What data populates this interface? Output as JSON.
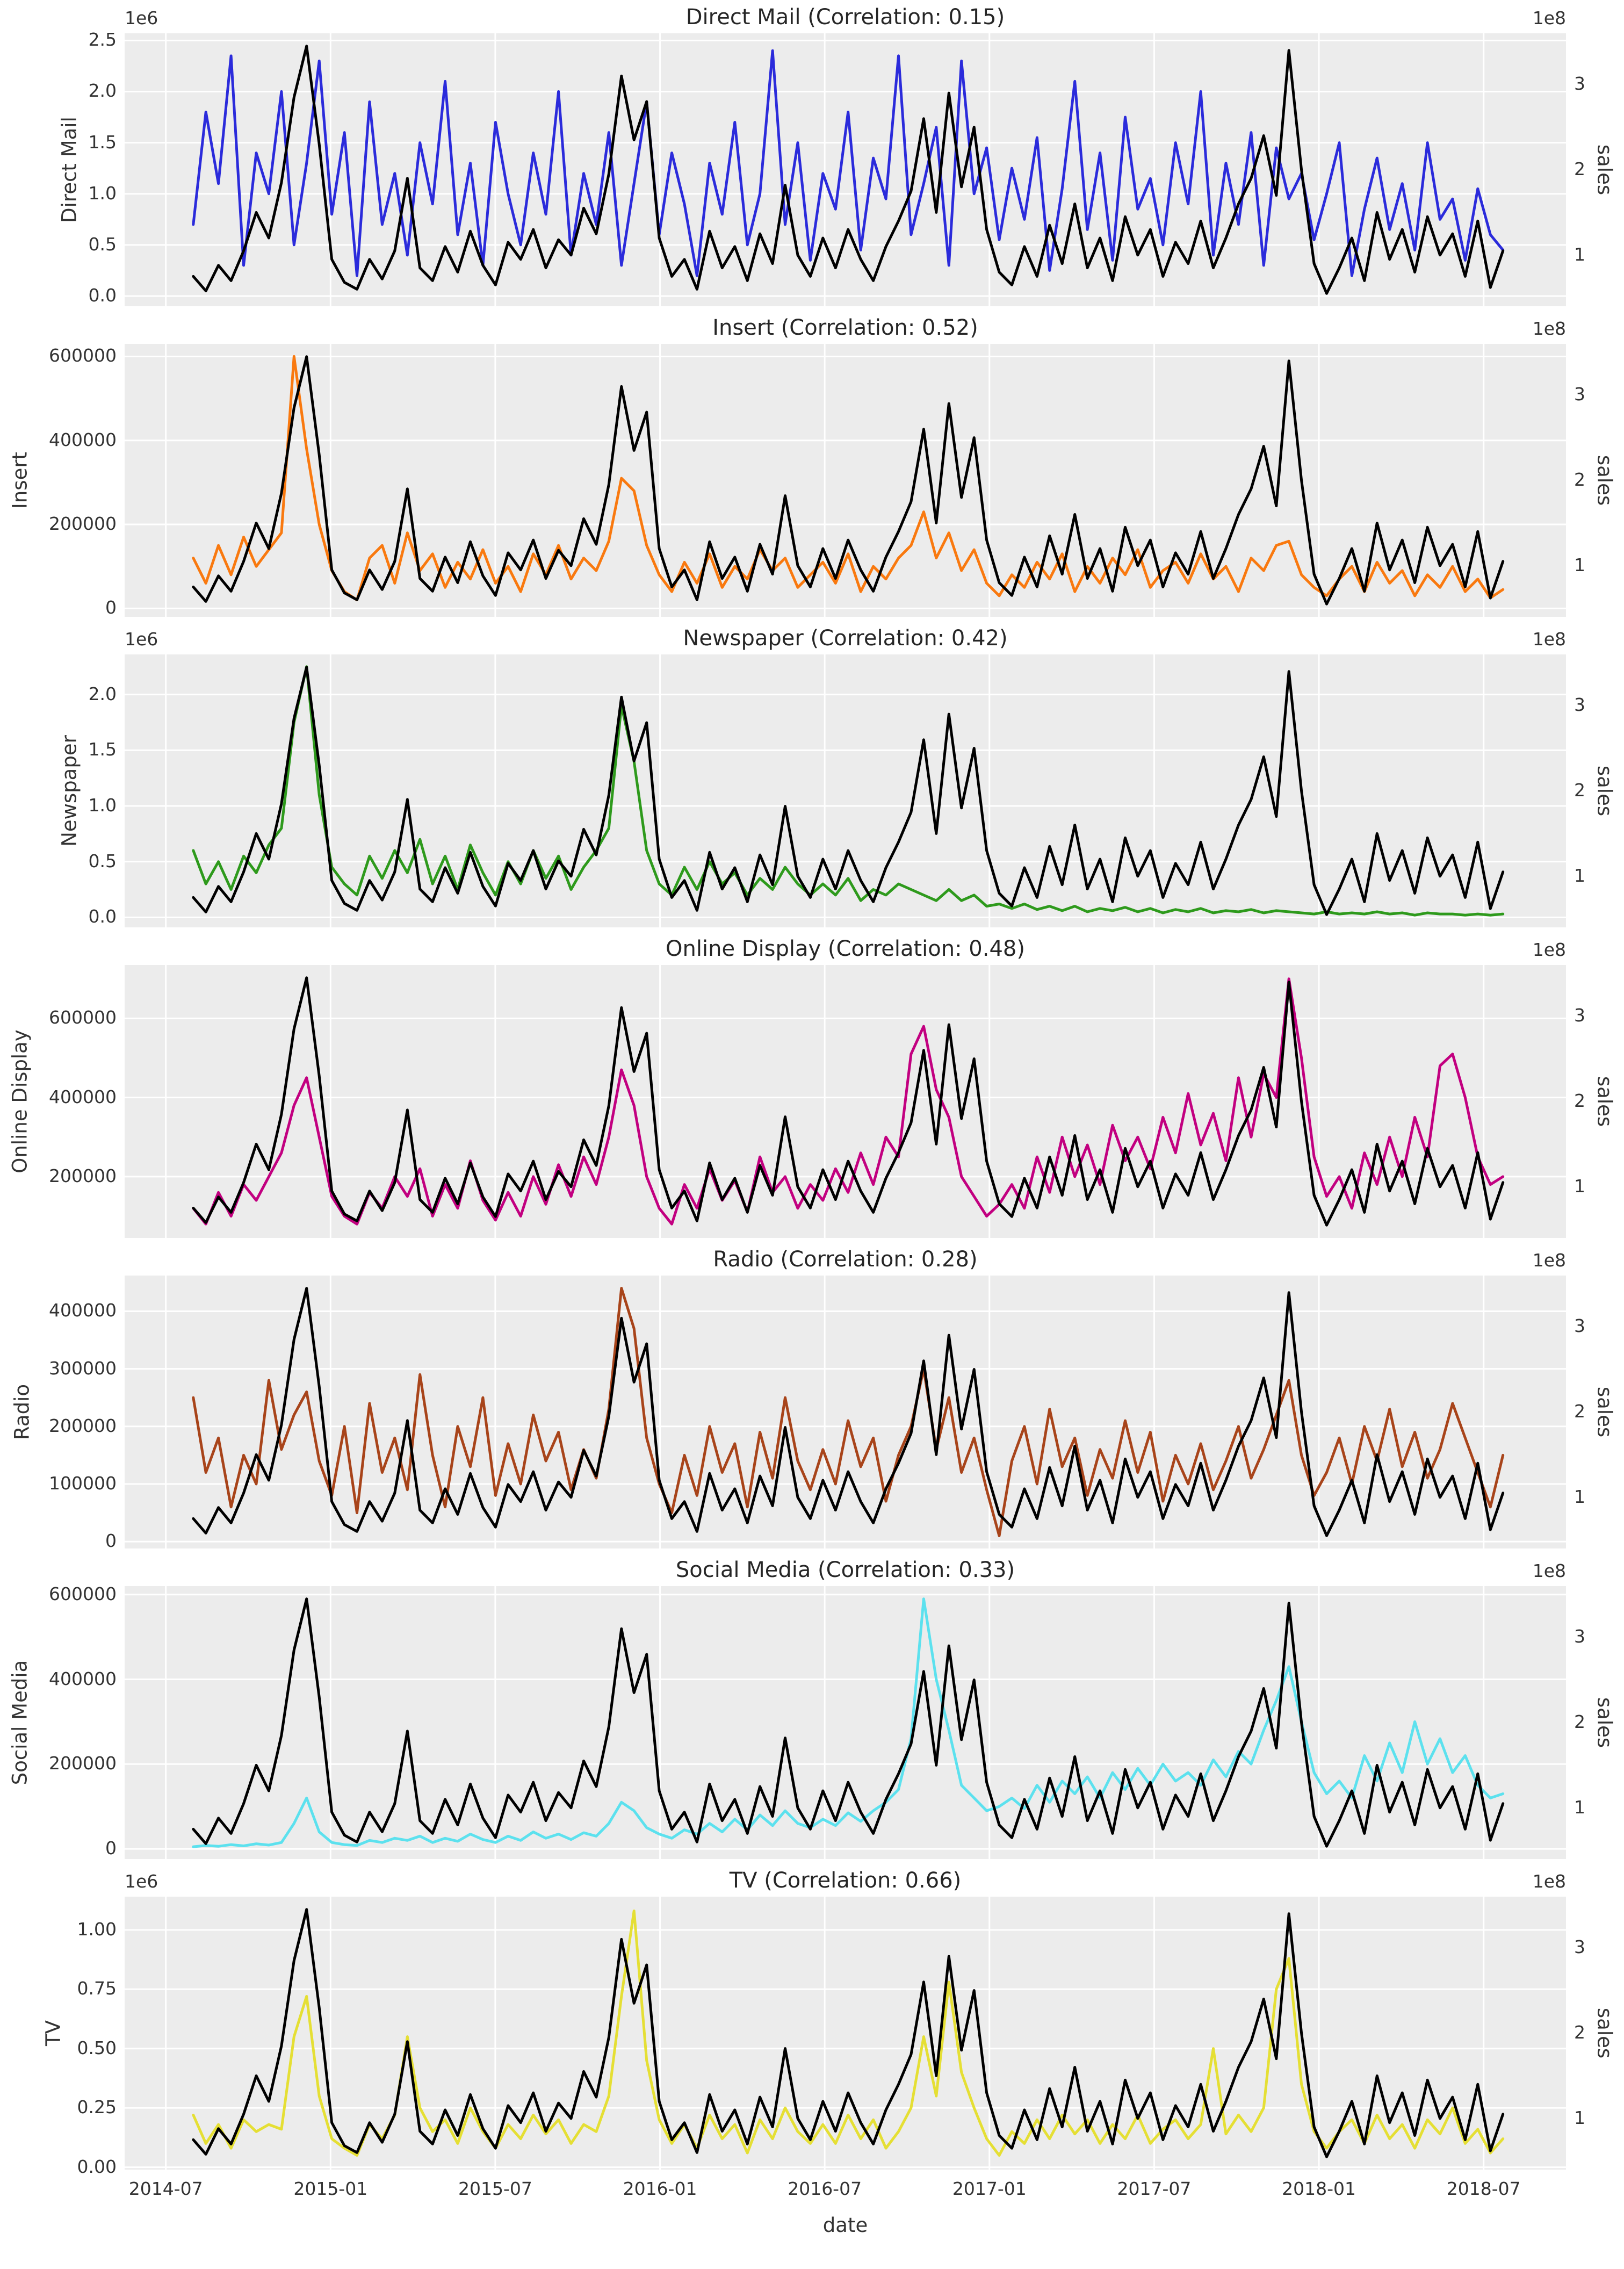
{
  "figure": {
    "background": "#ffffff",
    "plot_background": "#ececec",
    "grid_color": "#ffffff",
    "text_color": "#333333",
    "sales_line_color": "#000000"
  },
  "right_axis": {
    "label": "sales",
    "offset": "1e8",
    "tick_labels": [
      "1",
      "2",
      "3"
    ],
    "tick_values": [
      1,
      2,
      3
    ],
    "ylim": [
      0.4,
      3.6
    ]
  },
  "x_axis": {
    "label": "date",
    "tick_labels": [
      "2014-07",
      "2015-01",
      "2015-07",
      "2016-01",
      "2016-07",
      "2017-01",
      "2017-07",
      "2018-01",
      "2018-07"
    ],
    "tick_months": [
      0,
      6,
      12,
      18,
      24,
      30,
      36,
      42,
      48
    ],
    "xlim_months": [
      -1.5,
      51.0
    ],
    "start_month": 1.0,
    "step_month": 0.4587,
    "n_points": 105
  },
  "chart_data": {
    "type": "line",
    "description": "Weekly marketing spend per channel (colored, left axis) overlaid with sales (black, right axis, 1e8) from 2014-08 to 2018-07",
    "sales_units": "1e8",
    "sales_values": [
      0.75,
      0.58,
      0.88,
      0.7,
      1.05,
      1.5,
      1.2,
      1.85,
      2.85,
      3.45,
      2.3,
      0.95,
      0.68,
      0.6,
      0.95,
      0.72,
      1.05,
      1.9,
      0.85,
      0.7,
      1.1,
      0.8,
      1.28,
      0.88,
      0.65,
      1.15,
      0.95,
      1.3,
      0.85,
      1.18,
      1.0,
      1.55,
      1.25,
      1.95,
      3.1,
      2.35,
      2.8,
      1.2,
      0.75,
      0.95,
      0.6,
      1.28,
      0.85,
      1.1,
      0.7,
      1.25,
      0.9,
      1.82,
      1.0,
      0.75,
      1.2,
      0.85,
      1.3,
      0.95,
      0.7,
      1.1,
      1.4,
      1.75,
      2.6,
      1.5,
      2.9,
      1.8,
      2.5,
      1.3,
      0.8,
      0.65,
      1.1,
      0.75,
      1.35,
      0.9,
      1.6,
      0.85,
      1.2,
      0.7,
      1.45,
      1.0,
      1.3,
      0.75,
      1.15,
      0.9,
      1.4,
      0.85,
      1.2,
      1.6,
      1.9,
      2.4,
      1.7,
      3.4,
      2.0,
      0.9,
      0.55,
      0.85,
      1.2,
      0.7,
      1.5,
      0.95,
      1.3,
      0.8,
      1.45,
      1.0,
      1.25,
      0.75,
      1.4,
      0.62,
      1.05
    ],
    "panels": [
      {
        "key": "direct-mail",
        "title": "Direct Mail (Correlation: 0.15)",
        "correlation": 0.15,
        "ylabel": "Direct Mail",
        "color": "#2b2bdb",
        "offset_label": "1e6",
        "units": "1e6",
        "ytick_values": [
          0.0,
          0.5,
          1.0,
          1.5,
          2.0,
          2.5
        ],
        "ytick_labels": [
          "0.0",
          "0.5",
          "1.0",
          "1.5",
          "2.0",
          "2.5"
        ],
        "ylim": [
          -0.1,
          2.57
        ],
        "values": [
          0.7,
          1.8,
          1.1,
          2.35,
          0.3,
          1.4,
          1.0,
          2.0,
          0.5,
          1.3,
          2.3,
          0.8,
          1.6,
          0.2,
          1.9,
          0.7,
          1.2,
          0.4,
          1.5,
          0.9,
          2.1,
          0.6,
          1.3,
          0.3,
          1.7,
          1.0,
          0.5,
          1.4,
          0.8,
          2.0,
          0.4,
          1.2,
          0.7,
          1.6,
          0.3,
          1.1,
          1.9,
          0.6,
          1.4,
          0.9,
          0.2,
          1.3,
          0.8,
          1.7,
          0.5,
          1.0,
          2.4,
          0.7,
          1.5,
          0.35,
          1.2,
          0.85,
          1.8,
          0.45,
          1.35,
          0.95,
          2.35,
          0.6,
          1.1,
          1.65,
          0.3,
          2.3,
          1.0,
          1.45,
          0.55,
          1.25,
          0.75,
          1.55,
          0.25,
          1.05,
          2.1,
          0.65,
          1.4,
          0.35,
          1.75,
          0.85,
          1.15,
          0.5,
          1.5,
          0.9,
          2.0,
          0.4,
          1.3,
          0.7,
          1.6,
          0.3,
          1.45,
          0.95,
          1.2,
          0.55,
          1.0,
          1.5,
          0.2,
          0.85,
          1.35,
          0.65,
          1.1,
          0.45,
          1.5,
          0.75,
          0.95,
          0.35,
          1.05,
          0.6,
          0.45
        ]
      },
      {
        "key": "insert",
        "title": "Insert (Correlation: 0.52)",
        "correlation": 0.52,
        "ylabel": "Insert",
        "color": "#f9790f",
        "offset_label": "",
        "units": "raw",
        "ytick_values": [
          0,
          200000,
          400000,
          600000
        ],
        "ytick_labels": [
          "0",
          "200000",
          "400000",
          "600000"
        ],
        "ylim": [
          -20000,
          630000
        ],
        "values": [
          120000,
          60000,
          150000,
          80000,
          170000,
          100000,
          140000,
          180000,
          600000,
          380000,
          200000,
          90000,
          40000,
          20000,
          120000,
          150000,
          60000,
          180000,
          90000,
          130000,
          50000,
          110000,
          70000,
          140000,
          60000,
          100000,
          40000,
          130000,
          80000,
          150000,
          70000,
          120000,
          90000,
          160000,
          310000,
          280000,
          150000,
          80000,
          40000,
          110000,
          60000,
          130000,
          50000,
          100000,
          70000,
          140000,
          90000,
          120000,
          50000,
          80000,
          110000,
          60000,
          130000,
          40000,
          100000,
          70000,
          120000,
          150000,
          230000,
          120000,
          180000,
          90000,
          140000,
          60000,
          30000,
          80000,
          50000,
          110000,
          70000,
          130000,
          40000,
          100000,
          60000,
          120000,
          80000,
          140000,
          50000,
          90000,
          110000,
          60000,
          130000,
          70000,
          100000,
          40000,
          120000,
          90000,
          150000,
          160000,
          80000,
          50000,
          30000,
          70000,
          100000,
          40000,
          110000,
          60000,
          90000,
          30000,
          80000,
          50000,
          100000,
          40000,
          70000,
          25000,
          45000
        ]
      },
      {
        "key": "newspaper",
        "title": "Newspaper (Correlation: 0.42)",
        "correlation": 0.42,
        "ylabel": "Newspaper",
        "color": "#2e9a1c",
        "offset_label": "1e6",
        "units": "1e6",
        "ytick_values": [
          0.0,
          0.5,
          1.0,
          1.5,
          2.0
        ],
        "ytick_labels": [
          "0.0",
          "0.5",
          "1.0",
          "1.5",
          "2.0"
        ],
        "ylim": [
          -0.09,
          2.36
        ],
        "values": [
          0.6,
          0.3,
          0.5,
          0.25,
          0.55,
          0.4,
          0.65,
          0.8,
          1.75,
          2.25,
          1.1,
          0.45,
          0.3,
          0.2,
          0.55,
          0.35,
          0.6,
          0.4,
          0.7,
          0.3,
          0.55,
          0.25,
          0.65,
          0.4,
          0.2,
          0.5,
          0.3,
          0.6,
          0.35,
          0.55,
          0.25,
          0.45,
          0.6,
          0.8,
          1.9,
          1.4,
          0.6,
          0.3,
          0.2,
          0.45,
          0.25,
          0.5,
          0.3,
          0.4,
          0.2,
          0.35,
          0.25,
          0.45,
          0.3,
          0.2,
          0.3,
          0.2,
          0.35,
          0.15,
          0.25,
          0.2,
          0.3,
          0.25,
          0.2,
          0.15,
          0.25,
          0.15,
          0.2,
          0.1,
          0.12,
          0.08,
          0.12,
          0.07,
          0.1,
          0.06,
          0.1,
          0.05,
          0.08,
          0.06,
          0.09,
          0.05,
          0.08,
          0.04,
          0.07,
          0.05,
          0.08,
          0.04,
          0.06,
          0.05,
          0.07,
          0.04,
          0.06,
          0.05,
          0.04,
          0.03,
          0.05,
          0.03,
          0.04,
          0.03,
          0.05,
          0.03,
          0.04,
          0.02,
          0.04,
          0.03,
          0.03,
          0.02,
          0.03,
          0.02,
          0.03
        ]
      },
      {
        "key": "online-display",
        "title": "Online Display (Correlation: 0.48)",
        "correlation": 0.48,
        "ylabel": "Online Display",
        "color": "#c20080",
        "offset_label": "",
        "units": "raw",
        "ytick_values": [
          200000,
          400000,
          600000
        ],
        "ytick_labels": [
          "200000",
          "400000",
          "600000"
        ],
        "ylim": [
          45000,
          735000
        ],
        "values": [
          120000,
          80000,
          160000,
          100000,
          180000,
          140000,
          200000,
          260000,
          380000,
          450000,
          300000,
          150000,
          100000,
          80000,
          160000,
          120000,
          200000,
          150000,
          220000,
          100000,
          180000,
          120000,
          240000,
          140000,
          90000,
          160000,
          100000,
          200000,
          130000,
          230000,
          150000,
          250000,
          180000,
          300000,
          470000,
          380000,
          200000,
          120000,
          80000,
          180000,
          120000,
          220000,
          140000,
          190000,
          110000,
          250000,
          160000,
          200000,
          120000,
          180000,
          140000,
          220000,
          160000,
          260000,
          180000,
          300000,
          250000,
          510000,
          580000,
          420000,
          350000,
          200000,
          150000,
          100000,
          130000,
          180000,
          120000,
          250000,
          160000,
          300000,
          200000,
          280000,
          180000,
          330000,
          240000,
          300000,
          220000,
          350000,
          260000,
          410000,
          280000,
          360000,
          240000,
          450000,
          300000,
          460000,
          400000,
          700000,
          500000,
          250000,
          150000,
          200000,
          120000,
          260000,
          180000,
          300000,
          200000,
          350000,
          250000,
          480000,
          510000,
          400000,
          250000,
          180000,
          200000
        ]
      },
      {
        "key": "radio",
        "title": "Radio (Correlation: 0.28)",
        "correlation": 0.28,
        "ylabel": "Radio",
        "color": "#a8441a",
        "offset_label": "",
        "units": "raw",
        "ytick_values": [
          0,
          100000,
          200000,
          300000,
          400000
        ],
        "ytick_labels": [
          "0",
          "100000",
          "200000",
          "300000",
          "400000"
        ],
        "ylim": [
          -12000,
          462000
        ],
        "values": [
          250000,
          120000,
          180000,
          60000,
          150000,
          100000,
          280000,
          160000,
          220000,
          260000,
          140000,
          80000,
          200000,
          50000,
          240000,
          120000,
          180000,
          90000,
          290000,
          150000,
          60000,
          200000,
          130000,
          250000,
          80000,
          170000,
          100000,
          220000,
          140000,
          190000,
          90000,
          160000,
          110000,
          230000,
          440000,
          370000,
          180000,
          100000,
          50000,
          150000,
          80000,
          200000,
          120000,
          170000,
          60000,
          190000,
          110000,
          250000,
          140000,
          90000,
          160000,
          100000,
          210000,
          130000,
          180000,
          70000,
          150000,
          200000,
          300000,
          160000,
          250000,
          120000,
          180000,
          90000,
          10000,
          140000,
          200000,
          100000,
          230000,
          130000,
          180000,
          80000,
          160000,
          110000,
          210000,
          120000,
          190000,
          70000,
          150000,
          100000,
          170000,
          90000,
          140000,
          200000,
          110000,
          160000,
          220000,
          280000,
          150000,
          80000,
          120000,
          180000,
          100000,
          200000,
          140000,
          230000,
          130000,
          190000,
          110000,
          160000,
          240000,
          180000,
          120000,
          60000,
          150000
        ]
      },
      {
        "key": "social-media",
        "title": "Social Media (Correlation: 0.33)",
        "correlation": 0.33,
        "ylabel": "Social Media",
        "color": "#5ce1ee",
        "offset_label": "",
        "units": "raw",
        "ytick_values": [
          0,
          200000,
          400000,
          600000
        ],
        "ytick_labels": [
          "0",
          "200000",
          "400000",
          "600000"
        ],
        "ylim": [
          -24000,
          620000
        ],
        "values": [
          5000,
          8000,
          6000,
          10000,
          7000,
          12000,
          9000,
          15000,
          60000,
          120000,
          40000,
          15000,
          10000,
          8000,
          20000,
          15000,
          25000,
          20000,
          30000,
          15000,
          25000,
          18000,
          35000,
          22000,
          15000,
          30000,
          20000,
          40000,
          25000,
          35000,
          22000,
          38000,
          30000,
          60000,
          110000,
          90000,
          50000,
          35000,
          25000,
          45000,
          35000,
          60000,
          40000,
          70000,
          45000,
          80000,
          55000,
          90000,
          60000,
          50000,
          70000,
          55000,
          85000,
          65000,
          90000,
          110000,
          140000,
          260000,
          590000,
          400000,
          280000,
          150000,
          120000,
          90000,
          100000,
          120000,
          95000,
          150000,
          110000,
          160000,
          130000,
          170000,
          120000,
          180000,
          140000,
          190000,
          150000,
          200000,
          160000,
          180000,
          150000,
          210000,
          170000,
          230000,
          200000,
          280000,
          350000,
          430000,
          300000,
          180000,
          130000,
          160000,
          120000,
          220000,
          160000,
          250000,
          180000,
          300000,
          200000,
          260000,
          180000,
          220000,
          150000,
          120000,
          130000
        ]
      },
      {
        "key": "tv",
        "title": "TV (Correlation: 0.66)",
        "correlation": 0.66,
        "ylabel": "TV",
        "color": "#e5df34",
        "offset_label": "1e6",
        "units": "1e6",
        "ytick_values": [
          0.0,
          0.25,
          0.5,
          0.75,
          1.0
        ],
        "ytick_labels": [
          "0.00",
          "0.25",
          "0.50",
          "0.75",
          "1.00"
        ],
        "ylim": [
          -0.01,
          1.14
        ],
        "values": [
          0.22,
          0.1,
          0.18,
          0.08,
          0.2,
          0.15,
          0.18,
          0.16,
          0.55,
          0.72,
          0.3,
          0.12,
          0.08,
          0.05,
          0.18,
          0.12,
          0.22,
          0.55,
          0.25,
          0.15,
          0.2,
          0.1,
          0.25,
          0.15,
          0.08,
          0.18,
          0.12,
          0.22,
          0.14,
          0.2,
          0.1,
          0.18,
          0.15,
          0.3,
          0.72,
          1.08,
          0.45,
          0.2,
          0.1,
          0.18,
          0.08,
          0.22,
          0.12,
          0.18,
          0.06,
          0.2,
          0.12,
          0.25,
          0.15,
          0.1,
          0.18,
          0.1,
          0.22,
          0.12,
          0.2,
          0.08,
          0.15,
          0.25,
          0.55,
          0.3,
          0.78,
          0.4,
          0.25,
          0.12,
          0.05,
          0.15,
          0.1,
          0.2,
          0.12,
          0.22,
          0.14,
          0.2,
          0.1,
          0.18,
          0.12,
          0.22,
          0.1,
          0.16,
          0.2,
          0.12,
          0.18,
          0.5,
          0.14,
          0.22,
          0.15,
          0.25,
          0.75,
          0.88,
          0.35,
          0.15,
          0.08,
          0.15,
          0.2,
          0.1,
          0.22,
          0.12,
          0.18,
          0.08,
          0.2,
          0.14,
          0.25,
          0.1,
          0.16,
          0.06,
          0.12
        ]
      }
    ]
  }
}
